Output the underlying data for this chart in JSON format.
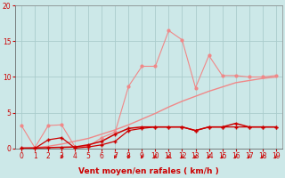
{
  "background_color": "#cce8e8",
  "grid_color": "#aacccc",
  "x_values": [
    0,
    1,
    2,
    3,
    4,
    5,
    6,
    7,
    8,
    9,
    10,
    11,
    12,
    13,
    14,
    15,
    16,
    17,
    18,
    19
  ],
  "line_spiky_pink_y": [
    3.2,
    0.1,
    3.2,
    3.3,
    0.2,
    0.3,
    1.5,
    2.3,
    8.7,
    11.5,
    11.5,
    16.5,
    15.2,
    8.5,
    13.0,
    10.2,
    10.2,
    10.0,
    10.0,
    10.2
  ],
  "line_trend_pink_y": [
    0.0,
    0.1,
    0.3,
    0.6,
    1.0,
    1.4,
    2.0,
    2.6,
    3.3,
    4.1,
    4.9,
    5.8,
    6.6,
    7.3,
    8.0,
    8.6,
    9.2,
    9.5,
    9.8,
    10.0
  ],
  "line_dark1_y": [
    0.05,
    0.05,
    0.1,
    0.15,
    0.2,
    0.5,
    1.0,
    2.0,
    2.8,
    3.0,
    3.0,
    3.0,
    3.0,
    2.5,
    3.0,
    3.0,
    3.5,
    3.0,
    3.0,
    3.0
  ],
  "line_dark2_y": [
    0.0,
    0.0,
    1.2,
    1.5,
    0.05,
    0.2,
    0.5,
    1.0,
    2.5,
    2.8,
    3.0,
    3.0,
    3.0,
    2.5,
    3.0,
    3.0,
    3.0,
    3.0,
    3.0,
    3.0
  ],
  "arrow_x_positions": [
    3,
    7,
    8,
    9,
    10,
    11,
    12,
    13,
    14,
    15,
    16,
    17,
    18,
    19
  ],
  "xlabel": "Vent moyen/en rafales ( km/h )",
  "ylim": [
    0,
    20
  ],
  "xlim": [
    -0.5,
    19.5
  ],
  "yticks": [
    0,
    5,
    10,
    15,
    20
  ],
  "xticks": [
    0,
    1,
    2,
    3,
    4,
    5,
    6,
    7,
    8,
    9,
    10,
    11,
    12,
    13,
    14,
    15,
    16,
    17,
    18,
    19
  ],
  "dark_red": "#cc0000",
  "light_pink": "#f08888",
  "tick_label_size": 5.5,
  "xlabel_size": 6.5
}
